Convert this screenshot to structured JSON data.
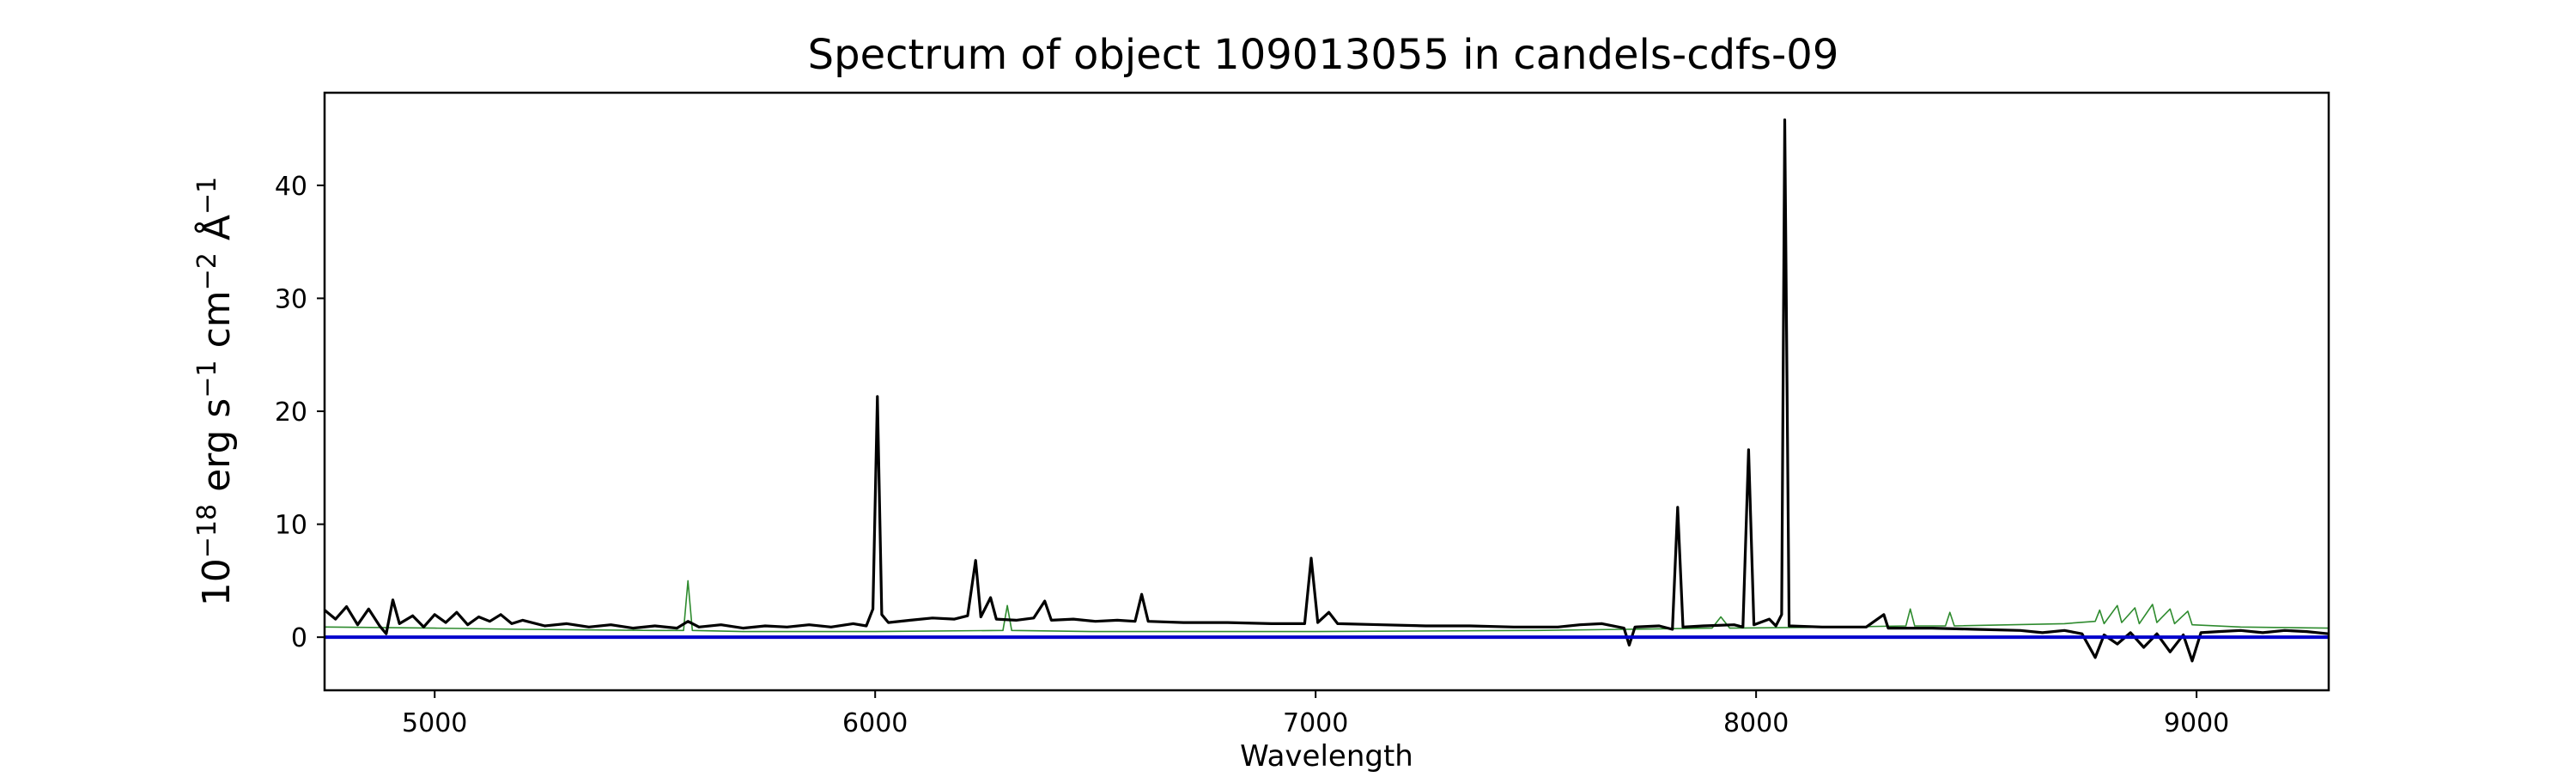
{
  "chart_data": {
    "type": "line",
    "title": "Spectrum of object 109013055 in candels-cdfs-09",
    "xlabel": "Wavelength",
    "ylabel": {
      "prefix": "10",
      "exp1": "−18",
      "text1": " erg s",
      "exp2": "−1",
      "text2": " cm",
      "exp3": "−2",
      "text3": " Å",
      "exp4": "−1"
    },
    "xlim": [
      4750,
      9300
    ],
    "ylim": [
      -4.7,
      48.2
    ],
    "x_ticks": [
      5000,
      6000,
      7000,
      8000,
      9000
    ],
    "y_ticks": [
      0,
      10,
      20,
      30,
      40
    ],
    "grid": false,
    "colors": {
      "flux": "#000000",
      "noise": "#2e8b2e",
      "zero": "#0000cc"
    },
    "series": [
      {
        "key": "flux",
        "color": "#000000",
        "points": [
          [
            4750,
            2.4
          ],
          [
            4775,
            1.6
          ],
          [
            4800,
            2.7
          ],
          [
            4825,
            1.1
          ],
          [
            4850,
            2.5
          ],
          [
            4875,
            1.0
          ],
          [
            4890,
            0.3
          ],
          [
            4905,
            3.3
          ],
          [
            4920,
            1.2
          ],
          [
            4950,
            1.9
          ],
          [
            4975,
            0.9
          ],
          [
            5000,
            2.0
          ],
          [
            5025,
            1.3
          ],
          [
            5050,
            2.2
          ],
          [
            5075,
            1.1
          ],
          [
            5100,
            1.8
          ],
          [
            5125,
            1.4
          ],
          [
            5150,
            2.0
          ],
          [
            5175,
            1.2
          ],
          [
            5200,
            1.5
          ],
          [
            5250,
            1.0
          ],
          [
            5300,
            1.2
          ],
          [
            5350,
            0.9
          ],
          [
            5400,
            1.1
          ],
          [
            5450,
            0.8
          ],
          [
            5500,
            1.0
          ],
          [
            5550,
            0.8
          ],
          [
            5575,
            1.4
          ],
          [
            5600,
            0.9
          ],
          [
            5650,
            1.1
          ],
          [
            5700,
            0.8
          ],
          [
            5750,
            1.0
          ],
          [
            5800,
            0.9
          ],
          [
            5850,
            1.1
          ],
          [
            5900,
            0.9
          ],
          [
            5950,
            1.2
          ],
          [
            5980,
            1.0
          ],
          [
            5995,
            2.5
          ],
          [
            6005,
            21.3
          ],
          [
            6015,
            2.0
          ],
          [
            6030,
            1.3
          ],
          [
            6080,
            1.5
          ],
          [
            6130,
            1.7
          ],
          [
            6180,
            1.6
          ],
          [
            6210,
            1.9
          ],
          [
            6228,
            6.8
          ],
          [
            6240,
            1.8
          ],
          [
            6262,
            3.5
          ],
          [
            6275,
            1.6
          ],
          [
            6320,
            1.5
          ],
          [
            6360,
            1.7
          ],
          [
            6385,
            3.2
          ],
          [
            6400,
            1.5
          ],
          [
            6450,
            1.6
          ],
          [
            6500,
            1.4
          ],
          [
            6550,
            1.5
          ],
          [
            6590,
            1.4
          ],
          [
            6605,
            3.8
          ],
          [
            6620,
            1.4
          ],
          [
            6700,
            1.3
          ],
          [
            6800,
            1.3
          ],
          [
            6900,
            1.2
          ],
          [
            6975,
            1.2
          ],
          [
            6990,
            7.0
          ],
          [
            7005,
            1.3
          ],
          [
            7030,
            2.2
          ],
          [
            7050,
            1.2
          ],
          [
            7150,
            1.1
          ],
          [
            7250,
            1.0
          ],
          [
            7350,
            1.0
          ],
          [
            7450,
            0.9
          ],
          [
            7550,
            0.9
          ],
          [
            7600,
            1.1
          ],
          [
            7650,
            1.2
          ],
          [
            7700,
            0.8
          ],
          [
            7712,
            -0.7
          ],
          [
            7725,
            0.9
          ],
          [
            7780,
            1.0
          ],
          [
            7810,
            0.7
          ],
          [
            7822,
            11.5
          ],
          [
            7834,
            0.9
          ],
          [
            7880,
            1.0
          ],
          [
            7950,
            1.1
          ],
          [
            7970,
            0.9
          ],
          [
            7983,
            16.6
          ],
          [
            7995,
            1.1
          ],
          [
            8030,
            1.6
          ],
          [
            8045,
            1.0
          ],
          [
            8058,
            2.0
          ],
          [
            8065,
            45.8
          ],
          [
            8075,
            1.0
          ],
          [
            8150,
            0.9
          ],
          [
            8250,
            0.9
          ],
          [
            8290,
            2.0
          ],
          [
            8300,
            0.8
          ],
          [
            8400,
            0.8
          ],
          [
            8500,
            0.7
          ],
          [
            8600,
            0.6
          ],
          [
            8650,
            0.4
          ],
          [
            8700,
            0.6
          ],
          [
            8740,
            0.3
          ],
          [
            8770,
            -1.8
          ],
          [
            8790,
            0.2
          ],
          [
            8820,
            -0.6
          ],
          [
            8850,
            0.4
          ],
          [
            8880,
            -0.9
          ],
          [
            8910,
            0.3
          ],
          [
            8940,
            -1.3
          ],
          [
            8970,
            0.2
          ],
          [
            8990,
            -2.1
          ],
          [
            9010,
            0.4
          ],
          [
            9050,
            0.5
          ],
          [
            9100,
            0.6
          ],
          [
            9150,
            0.4
          ],
          [
            9200,
            0.6
          ],
          [
            9250,
            0.5
          ],
          [
            9300,
            0.3
          ]
        ]
      },
      {
        "key": "noise",
        "color": "#2e8b2e",
        "points": [
          [
            4750,
            0.9
          ],
          [
            5000,
            0.8
          ],
          [
            5200,
            0.7
          ],
          [
            5500,
            0.6
          ],
          [
            5565,
            0.6
          ],
          [
            5575,
            5.0
          ],
          [
            5585,
            0.6
          ],
          [
            5700,
            0.5
          ],
          [
            6000,
            0.5
          ],
          [
            6290,
            0.6
          ],
          [
            6300,
            2.8
          ],
          [
            6310,
            0.6
          ],
          [
            6500,
            0.5
          ],
          [
            7000,
            0.5
          ],
          [
            7500,
            0.6
          ],
          [
            7700,
            0.7
          ],
          [
            7900,
            0.8
          ],
          [
            7920,
            1.8
          ],
          [
            7940,
            0.8
          ],
          [
            8200,
            0.9
          ],
          [
            8340,
            1.0
          ],
          [
            8350,
            2.5
          ],
          [
            8360,
            1.0
          ],
          [
            8430,
            1.0
          ],
          [
            8440,
            2.2
          ],
          [
            8450,
            1.0
          ],
          [
            8700,
            1.2
          ],
          [
            8770,
            1.4
          ],
          [
            8780,
            2.4
          ],
          [
            8790,
            1.2
          ],
          [
            8820,
            2.8
          ],
          [
            8830,
            1.3
          ],
          [
            8860,
            2.6
          ],
          [
            8870,
            1.2
          ],
          [
            8900,
            2.9
          ],
          [
            8910,
            1.3
          ],
          [
            8940,
            2.5
          ],
          [
            8950,
            1.2
          ],
          [
            8980,
            2.3
          ],
          [
            8990,
            1.1
          ],
          [
            9100,
            0.9
          ],
          [
            9300,
            0.8
          ]
        ]
      }
    ]
  }
}
